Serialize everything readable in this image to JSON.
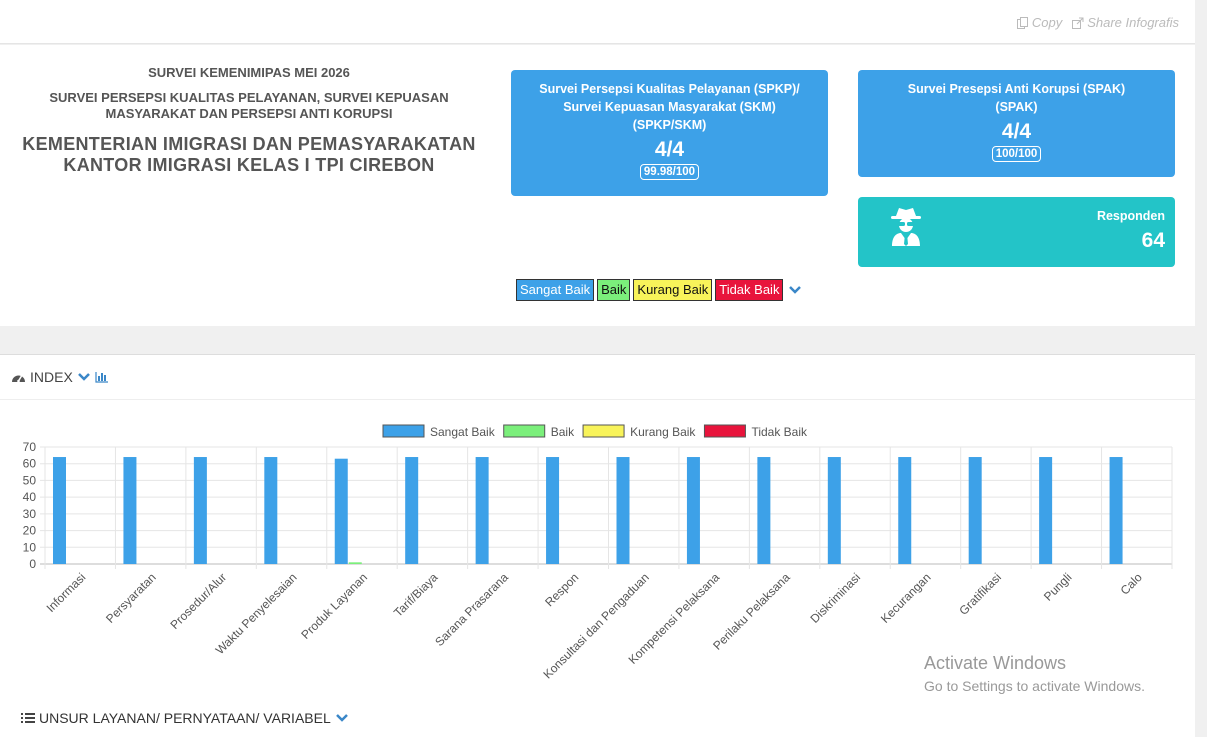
{
  "topbar": {
    "copy_label": "Copy",
    "share_label": "Share Infografis"
  },
  "heading": {
    "line1": "SURVEI KEMENIMIPAS MEI 2026",
    "line2": "SURVEI PERSEPSI KUALITAS PELAYANAN, SURVEI KEPUASAN MASYARAKAT DAN PERSEPSI ANTI KORUPSI",
    "line3": "KEMENTERIAN IMIGRASI DAN PEMASYARAKATAN",
    "line4": "KANTOR IMIGRASI KELAS I TPI CIREBON"
  },
  "cards": {
    "spkp": {
      "title1": "Survei Persepsi Kualitas Pelayanan (SPKP)/",
      "title2": "Survei Kepuasan Masyarakat (SKM)",
      "title3": "(SPKP/SKM)",
      "score": "4/4",
      "badge": "99.98/100"
    },
    "spak": {
      "title1": "Survei Presepsi Anti Korupsi (SPAK)",
      "title2": "(SPAK)",
      "score": "4/4",
      "badge": "100/100"
    },
    "responden": {
      "label": "Responden",
      "value": "64",
      "icon": "user-secret-icon"
    }
  },
  "legend_boxes": [
    "Sangat Baik",
    "Baik",
    "Kurang Baik",
    "Tidak Baik"
  ],
  "colors": {
    "sangat_baik": "#3da1e8",
    "baik": "#7bef7b",
    "kurang_baik": "#f8f35a",
    "tidak_baik": "#e8143c",
    "responden": "#23c4c8"
  },
  "panel": {
    "title": "INDEX",
    "unsur_title": "UNSUR LAYANAN/ PERNYATAAN/ VARIABEL"
  },
  "watermark": {
    "line1": "Activate Windows",
    "line2": "Go to Settings to activate Windows."
  },
  "chart_data": {
    "type": "bar",
    "categories": [
      "Informasi",
      "Persyaratan",
      "Prosedur/Alur",
      "Waktu Penyelesaian",
      "Produk Layanan",
      "Tarif/Biaya",
      "Sarana Prasarana",
      "Respon",
      "Konsultasi dan Pengaduan",
      "Kompetensi Pelaksana",
      "Perilaku Pelaksana",
      "Diskriminasi",
      "Kecurangan",
      "Gratifikasi",
      "Pungli",
      "Calo"
    ],
    "series": [
      {
        "name": "Sangat Baik",
        "color": "#3da1e8",
        "values": [
          64,
          64,
          64,
          64,
          63,
          64,
          64,
          64,
          64,
          64,
          64,
          64,
          64,
          64,
          64,
          64
        ]
      },
      {
        "name": "Baik",
        "color": "#7bef7b",
        "values": [
          0,
          0,
          0,
          0,
          1,
          0,
          0,
          0,
          0,
          0,
          0,
          0,
          0,
          0,
          0,
          0
        ]
      },
      {
        "name": "Kurang Baik",
        "color": "#f8f35a",
        "values": [
          0,
          0,
          0,
          0,
          0,
          0,
          0,
          0,
          0,
          0,
          0,
          0,
          0,
          0,
          0,
          0
        ]
      },
      {
        "name": "Tidak Baik",
        "color": "#e8143c",
        "values": [
          0,
          0,
          0,
          0,
          0,
          0,
          0,
          0,
          0,
          0,
          0,
          0,
          0,
          0,
          0,
          0
        ]
      }
    ],
    "yticks": [
      0,
      10,
      20,
      30,
      40,
      50,
      60,
      70
    ],
    "ylim": [
      0,
      70
    ],
    "grid": true,
    "legend": "top-center"
  }
}
